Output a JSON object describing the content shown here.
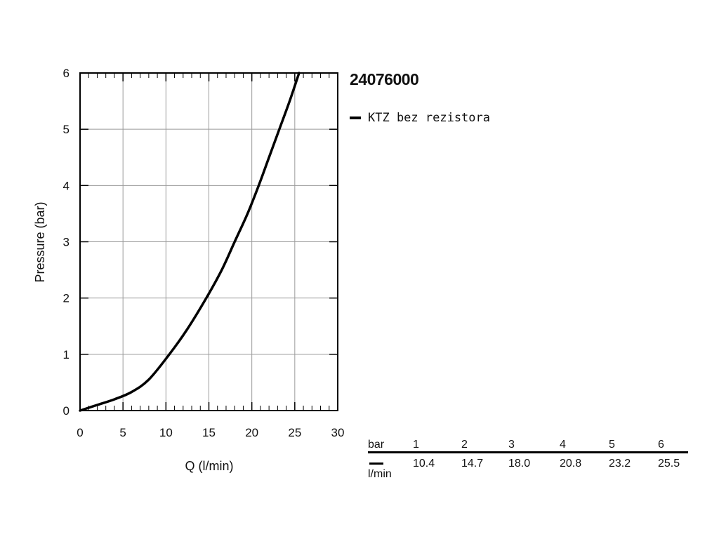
{
  "product_title": "24076000",
  "legend": {
    "label": "KTZ bez rezistora",
    "color": "#000000"
  },
  "table": {
    "row1_label": "bar",
    "row2_label": "l/min",
    "pressures": [
      "1",
      "2",
      "3",
      "4",
      "5",
      "6"
    ],
    "flows": [
      "10.4",
      "14.7",
      "18.0",
      "20.8",
      "23.2",
      "25.5"
    ]
  },
  "chart_data": {
    "type": "line",
    "title": "24076000",
    "xlabel": "Q (l/min)",
    "ylabel": "Pressure (bar)",
    "xlim": [
      0,
      30
    ],
    "ylim": [
      0,
      6
    ],
    "xticks": [
      "0",
      "5",
      "10",
      "15",
      "20",
      "25",
      "30"
    ],
    "yticks": [
      "0",
      "1",
      "2",
      "3",
      "4",
      "5",
      "6"
    ],
    "grid": true,
    "legend_position": "top-right outside",
    "series": [
      {
        "name": "KTZ bez rezistora",
        "color": "#000000",
        "x": [
          0,
          2,
          4,
          6,
          8,
          10.4,
          12.5,
          14.7,
          16.5,
          18.0,
          19.5,
          20.8,
          22.0,
          23.2,
          24.4,
          25.5
        ],
        "y": [
          0,
          0.1,
          0.2,
          0.33,
          0.55,
          1,
          1.45,
          2,
          2.5,
          3,
          3.5,
          4,
          4.5,
          5,
          5.5,
          6
        ]
      }
    ]
  }
}
